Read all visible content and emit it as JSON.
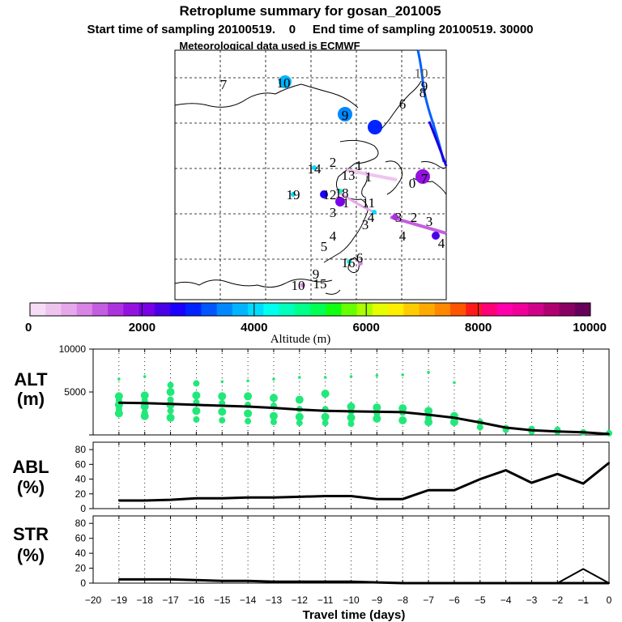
{
  "header": {
    "title": "Retroplume summary for gosan_201005",
    "subtitle": "Start time of sampling 20100519.    0     End time of sampling 20100519. 30000",
    "met_line": "Meteorological data used is ECMWF"
  },
  "colorbar": {
    "label": "Altitude (m)",
    "ticks": [
      "0",
      "2000",
      "4000",
      "6000",
      "8000",
      "10000"
    ],
    "colors": [
      "#f6dcf6",
      "#eec4ee",
      "#e6a8ea",
      "#d985e6",
      "#c35ee0",
      "#ac34de",
      "#9412e0",
      "#7a00e6",
      "#4a00e6",
      "#1c00ff",
      "#0024ff",
      "#0056ff",
      "#0088ff",
      "#00b4ff",
      "#00dcff",
      "#00ffee",
      "#00ffbb",
      "#00ff88",
      "#00ff55",
      "#11ff11",
      "#66ff00",
      "#aaff00",
      "#e5ff00",
      "#ffee00",
      "#ffcc00",
      "#ffaa00",
      "#ff8800",
      "#ff5500",
      "#ff1a1a",
      "#ff0077",
      "#ff00aa",
      "#f0009a",
      "#d0008a",
      "#b00070",
      "#8a0062",
      "#66005a"
    ]
  },
  "map": {
    "labels": [
      {
        "text": "10",
        "color": "#555555"
      },
      {
        "text": "9",
        "color": "#000000"
      },
      {
        "text": "7",
        "color": "#000000"
      },
      {
        "text": "10",
        "color": "#000000"
      },
      {
        "text": "9",
        "color": "#000000"
      },
      {
        "text": "6",
        "color": "#000000"
      },
      {
        "text": "8",
        "color": "#000000"
      },
      {
        "text": "1",
        "color": "#000000"
      },
      {
        "text": "2",
        "color": "#000000"
      },
      {
        "text": "14",
        "color": "#000000"
      },
      {
        "text": "1",
        "color": "#000000"
      },
      {
        "text": "13",
        "color": "#000000"
      },
      {
        "text": "12",
        "color": "#000000"
      },
      {
        "text": "0",
        "color": "#000000"
      },
      {
        "text": "7",
        "color": "#000000"
      },
      {
        "text": "19",
        "color": "#000000"
      },
      {
        "text": "18",
        "color": "#000000"
      },
      {
        "text": "11",
        "color": "#000000"
      },
      {
        "text": "3",
        "color": "#000000"
      },
      {
        "text": "1",
        "color": "#000000"
      },
      {
        "text": "4",
        "color": "#000000"
      },
      {
        "text": "3",
        "color": "#000000"
      },
      {
        "text": "2",
        "color": "#000000"
      },
      {
        "text": "3",
        "color": "#000000"
      },
      {
        "text": "3",
        "color": "#000000"
      },
      {
        "text": "4",
        "color": "#000000"
      },
      {
        "text": "5",
        "color": "#000000"
      },
      {
        "text": "4",
        "color": "#000000"
      },
      {
        "text": "4",
        "color": "#000000"
      },
      {
        "text": "16",
        "color": "#000000"
      },
      {
        "text": "6",
        "color": "#000000"
      },
      {
        "text": "9",
        "color": "#000000"
      },
      {
        "text": "10",
        "color": "#000000"
      },
      {
        "text": "15",
        "color": "#000000"
      }
    ]
  },
  "chart_data": [
    {
      "type": "line",
      "panel": "ALT",
      "ylabel": "ALT\n(m)",
      "ylabel_line1": "ALT",
      "ylabel_line2": "(m)",
      "ylim": [
        0,
        10000
      ],
      "yticks": [
        0,
        5000,
        10000
      ],
      "ytick_labels": [
        "",
        "5000",
        "10000"
      ],
      "xlim": [
        -20,
        0
      ],
      "x": [
        -19,
        -18,
        -17,
        -16,
        -15,
        -14,
        -13,
        -12,
        -11,
        -10,
        -9,
        -8,
        -7,
        -6,
        -5,
        -4,
        -3,
        -2,
        -1,
        0
      ],
      "values": [
        3750,
        3700,
        3600,
        3500,
        3400,
        3300,
        3150,
        2950,
        2800,
        2750,
        2700,
        2650,
        2350,
        2000,
        1450,
        850,
        550,
        400,
        300,
        100
      ],
      "spread": [
        {
          "x": -19,
          "alts": [
            6500,
            4500,
            4000,
            3500,
            3000,
            2500
          ]
        },
        {
          "x": -18,
          "alts": [
            6800,
            4600,
            4000,
            3300,
            2600,
            2200
          ]
        },
        {
          "x": -17,
          "alts": [
            5800,
            5000,
            4100,
            3500,
            2800,
            2000
          ]
        },
        {
          "x": -16,
          "alts": [
            6000,
            4600,
            3800,
            2800,
            1800
          ]
        },
        {
          "x": -15,
          "alts": [
            6200,
            4500,
            3700,
            2700,
            1700
          ]
        },
        {
          "x": -14,
          "alts": [
            6300,
            4500,
            3500,
            2500,
            1600
          ]
        },
        {
          "x": -13,
          "alts": [
            6500,
            4300,
            3400,
            2200,
            1500
          ]
        },
        {
          "x": -12,
          "alts": [
            6700,
            4100,
            3000,
            2100,
            1400
          ]
        },
        {
          "x": -11,
          "alts": [
            6700,
            4800,
            3000,
            2100,
            1400
          ]
        },
        {
          "x": -10,
          "alts": [
            6800,
            3300,
            2700,
            2000,
            1300
          ]
        },
        {
          "x": -9,
          "alts": [
            6900,
            3200,
            2500,
            1900
          ]
        },
        {
          "x": -8,
          "alts": [
            7000,
            3100,
            2600,
            1700
          ]
        },
        {
          "x": -7,
          "alts": [
            7300,
            2800,
            2000,
            1500
          ]
        },
        {
          "x": -6,
          "alts": [
            6100,
            2200,
            1900,
            1500
          ]
        },
        {
          "x": -5,
          "alts": [
            1500,
            900
          ]
        },
        {
          "x": -4,
          "alts": [
            800,
            600
          ]
        },
        {
          "x": -3,
          "alts": [
            700,
            400
          ]
        },
        {
          "x": -2,
          "alts": [
            600,
            400
          ]
        },
        {
          "x": -1,
          "alts": [
            300
          ]
        },
        {
          "x": 0,
          "alts": [
            200
          ]
        }
      ]
    },
    {
      "type": "line",
      "panel": "ABL",
      "ylabel_line1": "ABL",
      "ylabel_line2": "(%)",
      "ylim": [
        0,
        90
      ],
      "yticks": [
        0,
        20,
        40,
        60,
        80
      ],
      "ytick_labels": [
        "0",
        "20",
        "40",
        "60",
        "80"
      ],
      "xlim": [
        -20,
        0
      ],
      "x": [
        -19,
        -18,
        -17,
        -16,
        -15,
        -14,
        -13,
        -12,
        -11,
        -10,
        -9,
        -8,
        -7,
        -6,
        -5,
        -4,
        -3,
        -2,
        -1,
        0
      ],
      "values": [
        11,
        11,
        12,
        14,
        14,
        15,
        15,
        16,
        17,
        17,
        13,
        13,
        25,
        25,
        40,
        52,
        35,
        47,
        34,
        62
      ]
    },
    {
      "type": "line",
      "panel": "STR",
      "ylabel_line1": "STR",
      "ylabel_line2": "(%)",
      "ylim": [
        0,
        90
      ],
      "yticks": [
        0,
        20,
        40,
        60,
        80
      ],
      "ytick_labels": [
        "0",
        "20",
        "40",
        "60",
        "80"
      ],
      "xlim": [
        -20,
        0
      ],
      "x": [
        -19,
        -18,
        -17,
        -16,
        -15,
        -14,
        -13,
        -12,
        -11,
        -10,
        -9,
        -8,
        -7,
        -6,
        -5,
        -4,
        -3,
        -2,
        -1,
        0
      ],
      "values": [
        5,
        5,
        5,
        4,
        3,
        3,
        2,
        2,
        2,
        2,
        1,
        0,
        0,
        0,
        0,
        0,
        0,
        0,
        0,
        0
      ],
      "series2_values": [
        null,
        null,
        null,
        null,
        null,
        null,
        null,
        null,
        null,
        null,
        null,
        null,
        null,
        null,
        null,
        null,
        null,
        0,
        19,
        0
      ]
    }
  ],
  "xaxis": {
    "label": "Travel time (days)",
    "ticks": [
      "−20",
      "−19",
      "−18",
      "−17",
      "−16",
      "−15",
      "−14",
      "−13",
      "−12",
      "−11",
      "−10",
      "−9",
      "−8",
      "−7",
      "−6",
      "−5",
      "−4",
      "−3",
      "−2",
      "−1",
      "0"
    ]
  }
}
